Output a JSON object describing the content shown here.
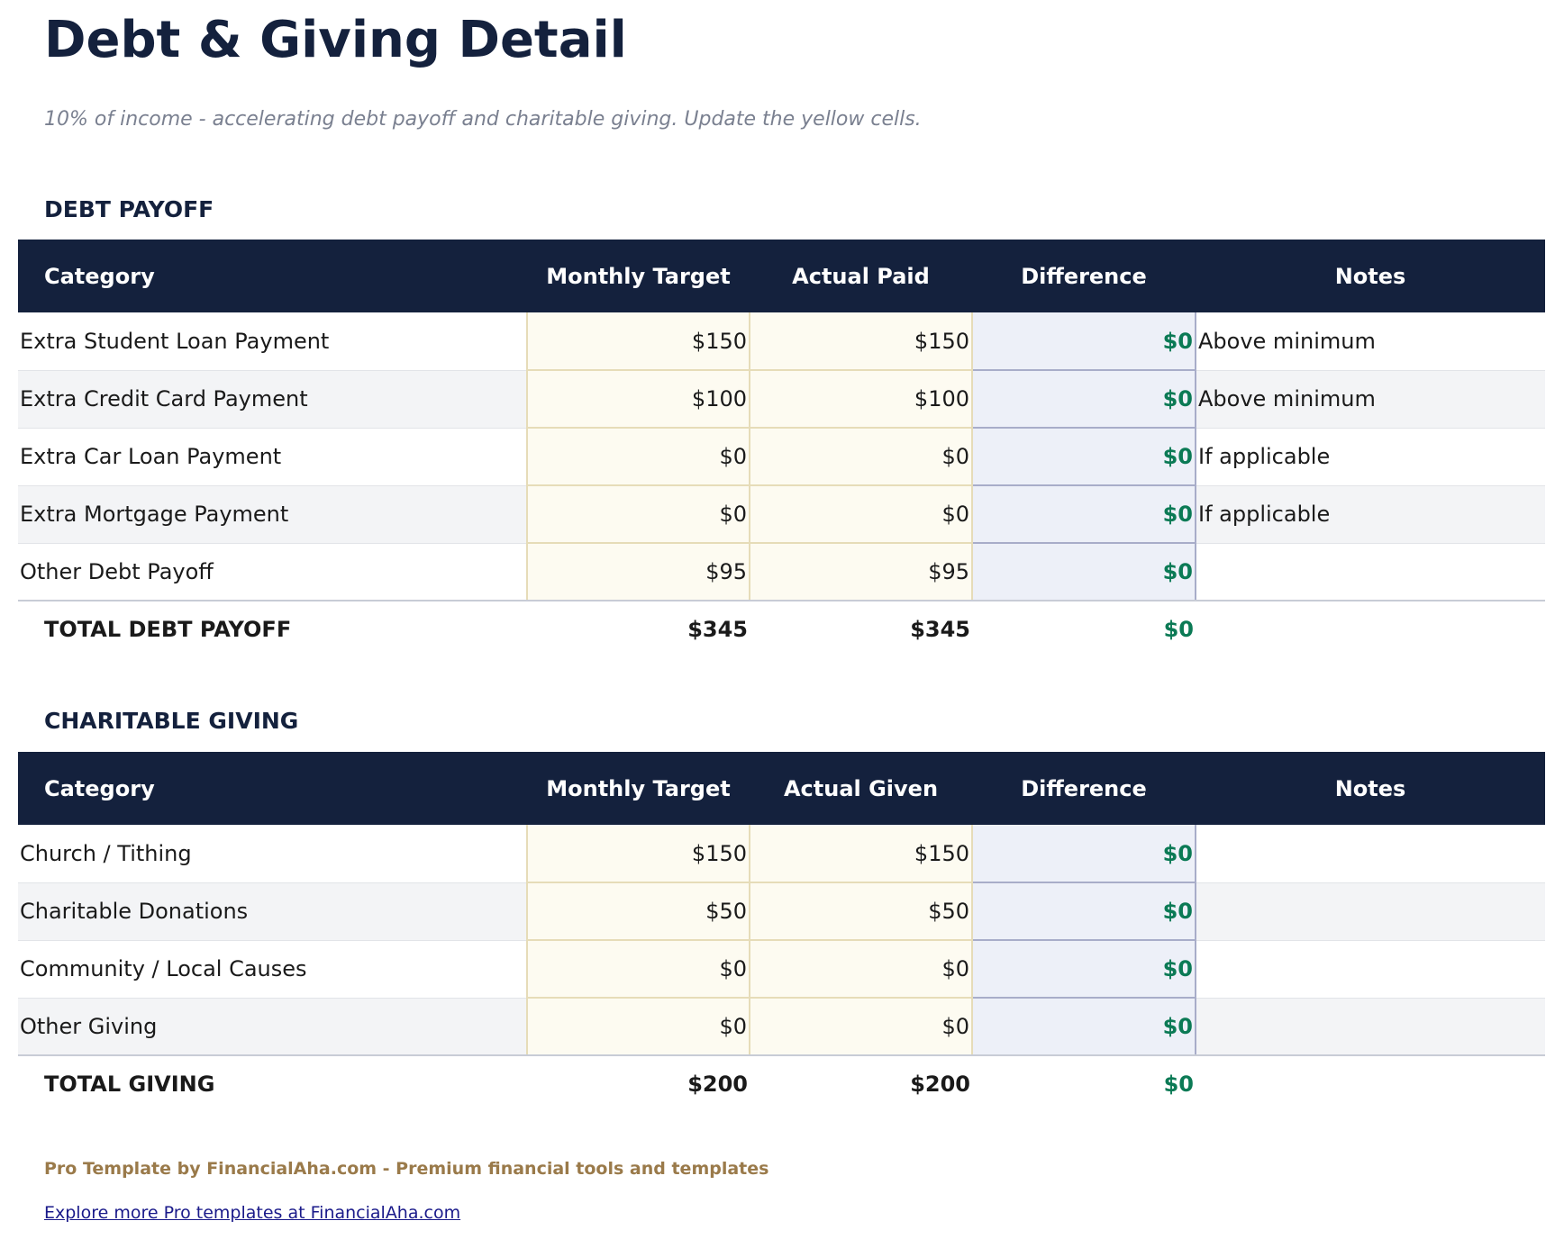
{
  "title": "Debt & Giving Detail",
  "subtitle": "10% of income - accelerating debt payoff and charitable giving. Update the yellow cells.",
  "debt": {
    "heading": "DEBT PAYOFF",
    "headers": [
      "Category",
      "Monthly Target",
      "Actual Paid",
      "Difference",
      "Notes"
    ],
    "rows": [
      [
        "Extra Student Loan Payment",
        "$150",
        "$150",
        "$0",
        "Above minimum"
      ],
      [
        "Extra Credit Card Payment",
        "$100",
        "$100",
        "$0",
        "Above minimum"
      ],
      [
        "Extra Car Loan Payment",
        "$0",
        "$0",
        "$0",
        "If applicable"
      ],
      [
        "Extra Mortgage Payment",
        "$0",
        "$0",
        "$0",
        "If applicable"
      ],
      [
        "Other Debt Payoff",
        "$95",
        "$95",
        "$0",
        ""
      ]
    ],
    "total": [
      "TOTAL DEBT PAYOFF",
      "$345",
      "$345",
      "$0"
    ]
  },
  "giving": {
    "heading": "CHARITABLE GIVING",
    "headers": [
      "Category",
      "Monthly Target",
      "Actual Given",
      "Difference",
      "Notes"
    ],
    "rows": [
      [
        "Church / Tithing",
        "$150",
        "$150",
        "$0",
        ""
      ],
      [
        "Charitable Donations",
        "$50",
        "$50",
        "$0",
        ""
      ],
      [
        "Community / Local Causes",
        "$0",
        "$0",
        "$0",
        ""
      ],
      [
        "Other Giving",
        "$0",
        "$0",
        "$0",
        ""
      ]
    ],
    "total": [
      "TOTAL GIVING",
      "$200",
      "$200",
      "$0"
    ]
  },
  "footer": "Pro Template by FinancialAha.com - Premium financial tools and templates",
  "link": "Explore more Pro templates at FinancialAha.com",
  "colors": {
    "header": "#14213d",
    "positive": "#0b7a55",
    "input": "#fdfbf1",
    "formula": "#edf0f8"
  }
}
